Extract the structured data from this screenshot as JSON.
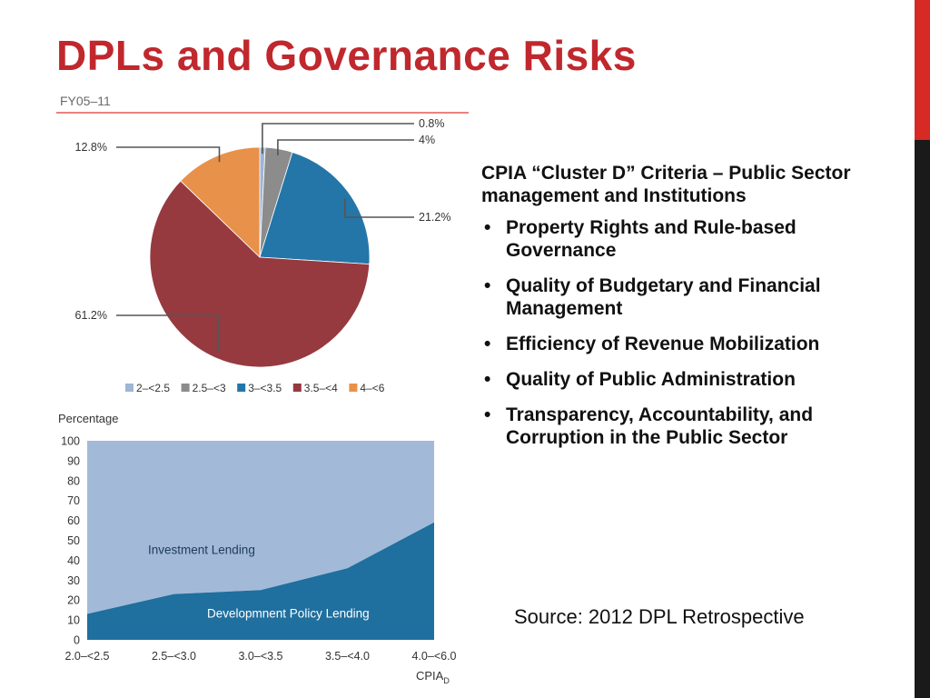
{
  "slide": {
    "title": "DPLs and Governance Risks",
    "colors": {
      "title": "#c0282d",
      "accent_top": "#d72a24",
      "accent_bottom": "#1a1a1a",
      "figure_rule": "#e05a50"
    }
  },
  "panel": {
    "heading": "CPIA “Cluster D” Criteria – Public Sector management and Institutions",
    "bullets": [
      "Property Rights and Rule-based Governance",
      "Quality of Budgetary and Financial Management",
      "Efficiency of Revenue Mobilization",
      "Quality of Public Administration",
      "Transparency, Accountability, and Corruption in the Public Sector"
    ]
  },
  "source": "Source: 2012 DPL Retrospective",
  "chart_data": [
    {
      "type": "pie",
      "title": "FY05–11",
      "labels": [
        "2–<2.5",
        "2.5–<3",
        "3–<3.5",
        "3.5–<4",
        "4–<6"
      ],
      "values": [
        0.8,
        4,
        21.2,
        61.2,
        12.8
      ],
      "value_labels": [
        "0.8%",
        "4%",
        "21.2%",
        "61.2%",
        "12.8%"
      ],
      "colors": [
        "#9fb6d4",
        "#8c8c8c",
        "#2476a8",
        "#963a40",
        "#e8914a"
      ],
      "legend_placement": "bottom"
    },
    {
      "type": "area",
      "ylabel": "Percentage",
      "xlabel": "CPIA",
      "xlabel_subscript": "D",
      "categories": [
        "2.0–<2.5",
        "2.5–<3.0",
        "3.0–<3.5",
        "3.5–<4.0",
        "4.0–<6.0"
      ],
      "ylim": [
        0,
        100
      ],
      "yticks": [
        0,
        10,
        20,
        30,
        40,
        50,
        60,
        70,
        80,
        90,
        100
      ],
      "series": [
        {
          "name": "Development Policy Lending",
          "label": "Developmnent  Policy Lending",
          "values": [
            13,
            23,
            25,
            36,
            59
          ],
          "color": "#1f6f9f"
        },
        {
          "name": "Investment Lending",
          "label": "Investment Lending",
          "values": [
            87,
            77,
            75,
            64,
            41
          ],
          "color": "#a2bad8"
        }
      ],
      "grid": false,
      "legend_placement": "inline"
    }
  ]
}
